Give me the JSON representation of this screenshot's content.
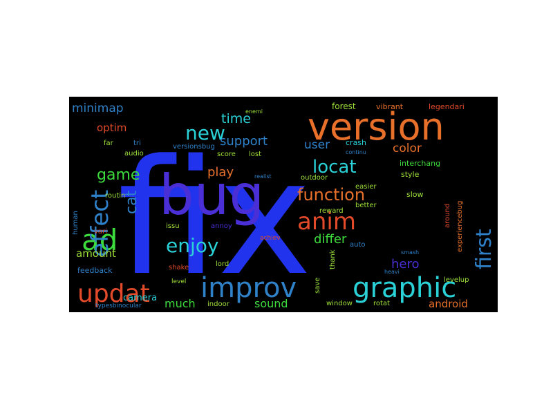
{
  "colors": {
    "background": "#000000",
    "page": "#ffffff",
    "blue": "#2233ee",
    "indigo": "#4a2fd6",
    "orange": "#e8702a",
    "red": "#e24a2a",
    "green": "#3ddc3d",
    "cyan": "#2ad1d6",
    "steelblue": "#2f82c9",
    "lime": "#9ee03a"
  },
  "words": [
    {
      "text": "fix",
      "color": "blue",
      "weight": 100
    },
    {
      "text": "version",
      "color": "orange",
      "weight": 55
    },
    {
      "text": "bug",
      "color": "indigo",
      "weight": 50
    },
    {
      "text": "improv",
      "color": "steelblue",
      "weight": 40
    },
    {
      "text": "graphic",
      "color": "cyan",
      "weight": 40
    },
    {
      "text": "updat",
      "color": "red",
      "weight": 36
    },
    {
      "text": "ad",
      "color": "green",
      "weight": 34
    },
    {
      "text": "anim",
      "color": "red",
      "weight": 32
    },
    {
      "text": "effect",
      "color": "steelblue",
      "weight": 30
    },
    {
      "text": "new",
      "color": "cyan",
      "weight": 27
    },
    {
      "text": "first",
      "color": "steelblue",
      "weight": 27
    },
    {
      "text": "enjoy",
      "color": "cyan",
      "weight": 26
    },
    {
      "text": "locat",
      "color": "cyan",
      "weight": 24
    },
    {
      "text": "function",
      "color": "orange",
      "weight": 22
    },
    {
      "text": "game",
      "color": "green",
      "weight": 20
    },
    {
      "text": "cat",
      "color": "steelblue",
      "weight": 20
    },
    {
      "text": "support",
      "color": "steelblue",
      "weight": 18
    },
    {
      "text": "time",
      "color": "cyan",
      "weight": 18
    },
    {
      "text": "play",
      "color": "orange",
      "weight": 17
    },
    {
      "text": "differ",
      "color": "green",
      "weight": 17
    },
    {
      "text": "hero",
      "color": "indigo",
      "weight": 17
    },
    {
      "text": "color",
      "color": "orange",
      "weight": 16
    },
    {
      "text": "minimap",
      "color": "steelblue",
      "weight": 16
    },
    {
      "text": "optim",
      "color": "red",
      "weight": 15
    },
    {
      "text": "user",
      "color": "steelblue",
      "weight": 15
    },
    {
      "text": "amount",
      "color": "lime",
      "weight": 15
    },
    {
      "text": "android",
      "color": "orange",
      "weight": 15
    },
    {
      "text": "sound",
      "color": "green",
      "weight": 15
    },
    {
      "text": "much",
      "color": "green",
      "weight": 14
    },
    {
      "text": "camera",
      "color": "cyan",
      "weight": 13
    },
    {
      "text": "forest",
      "color": "lime",
      "weight": 11
    },
    {
      "text": "vibrant",
      "color": "orange",
      "weight": 11
    },
    {
      "text": "legendari",
      "color": "red",
      "weight": 11
    },
    {
      "text": "crash",
      "color": "cyan",
      "weight": 11
    },
    {
      "text": "interchang",
      "color": "green",
      "weight": 11
    },
    {
      "text": "style",
      "color": "lime",
      "weight": 11
    },
    {
      "text": "slow",
      "color": "lime",
      "weight": 11
    },
    {
      "text": "versionsbug",
      "color": "steelblue",
      "weight": 10
    },
    {
      "text": "far",
      "color": "lime",
      "weight": 10
    },
    {
      "text": "tri",
      "color": "steelblue",
      "weight": 10
    },
    {
      "text": "audio",
      "color": "lime",
      "weight": 10
    },
    {
      "text": "score",
      "color": "lime",
      "weight": 10
    },
    {
      "text": "lost",
      "color": "lime",
      "weight": 10
    },
    {
      "text": "reward",
      "color": "lime",
      "weight": 10
    },
    {
      "text": "easier",
      "color": "lime",
      "weight": 10
    },
    {
      "text": "outdoor",
      "color": "lime",
      "weight": 10
    },
    {
      "text": "routin",
      "color": "lime",
      "weight": 10
    },
    {
      "text": "vari",
      "color": "red",
      "weight": 10
    },
    {
      "text": "human",
      "color": "steelblue",
      "weight": 10
    },
    {
      "text": "issu",
      "color": "lime",
      "weight": 10
    },
    {
      "text": "annoy",
      "color": "indigo",
      "weight": 10
    },
    {
      "text": "achiev",
      "color": "red",
      "weight": 9
    },
    {
      "text": "better",
      "color": "lime",
      "weight": 10
    },
    {
      "text": "around",
      "color": "red",
      "weight": 10
    },
    {
      "text": "experiencebug",
      "color": "orange",
      "weight": 10
    },
    {
      "text": "levelup",
      "color": "lime",
      "weight": 10
    },
    {
      "text": "auto",
      "color": "steelblue",
      "weight": 10
    },
    {
      "text": "thank",
      "color": "lime",
      "weight": 10
    },
    {
      "text": "save",
      "color": "lime",
      "weight": 10
    },
    {
      "text": "window",
      "color": "lime",
      "weight": 10
    },
    {
      "text": "rotat",
      "color": "lime",
      "weight": 10
    },
    {
      "text": "indoor",
      "color": "lime",
      "weight": 10
    },
    {
      "text": "lord",
      "color": "lime",
      "weight": 10
    },
    {
      "text": "shake",
      "color": "red",
      "weight": 10
    },
    {
      "text": "level",
      "color": "lime",
      "weight": 9
    },
    {
      "text": "feedback",
      "color": "steelblue",
      "weight": 11
    },
    {
      "text": "typesbinocular",
      "color": "steelblue",
      "weight": 9
    },
    {
      "text": "smash",
      "color": "steelblue",
      "weight": 8
    },
    {
      "text": "heavi",
      "color": "steelblue",
      "weight": 8
    },
    {
      "text": "enemi",
      "color": "lime",
      "weight": 8
    },
    {
      "text": "continu",
      "color": "steelblue",
      "weight": 8
    },
    {
      "text": "realist",
      "color": "steelblue",
      "weight": 8
    }
  ]
}
